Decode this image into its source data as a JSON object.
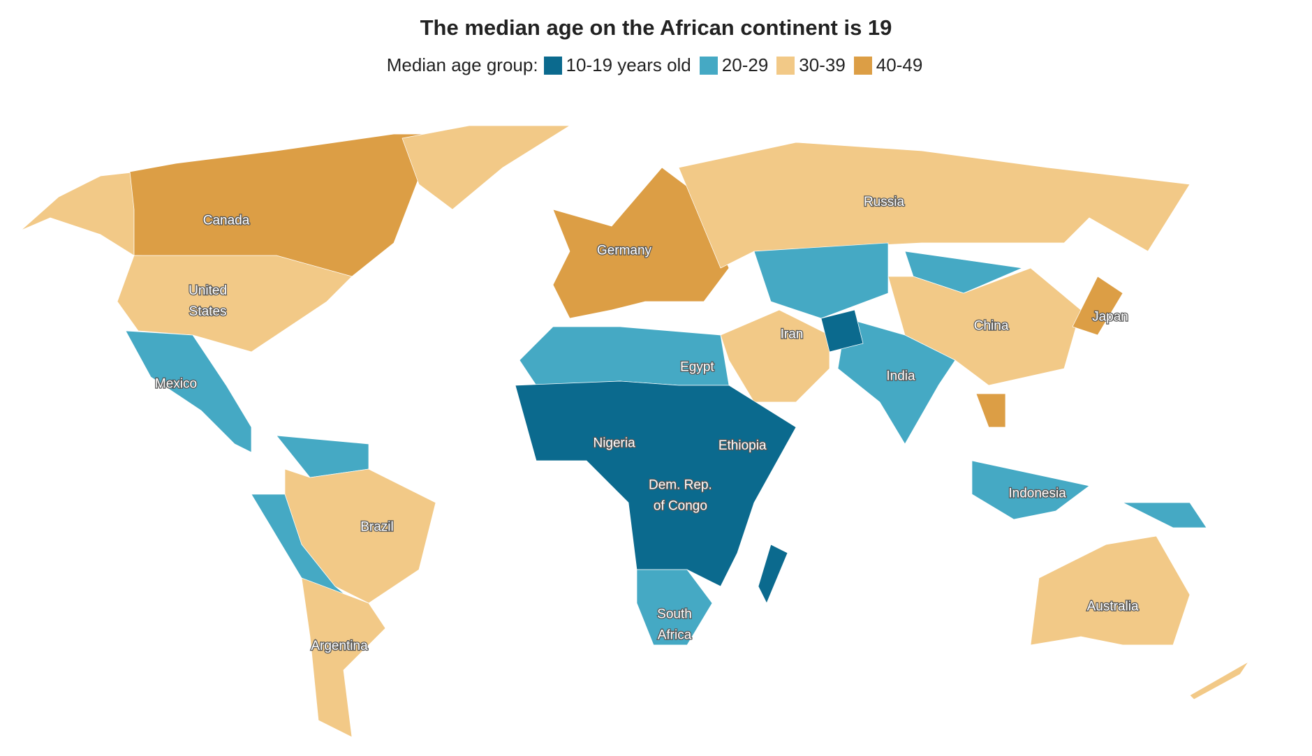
{
  "map": {
    "title": "The median age on the African continent is 19",
    "legend": {
      "label": "Median age group:",
      "items": [
        {
          "label": "10-19 years old",
          "color": "#0b6a8e"
        },
        {
          "label": "20-29",
          "color": "#45a9c4"
        },
        {
          "label": "30-39",
          "color": "#f2c987"
        },
        {
          "label": "40-49",
          "color": "#dc9e45"
        }
      ]
    },
    "labels": [
      {
        "lines": [
          "Canada"
        ]
      },
      {
        "lines": [
          "United",
          "States"
        ]
      },
      {
        "lines": [
          "Mexico"
        ]
      },
      {
        "lines": [
          "Brazil"
        ]
      },
      {
        "lines": [
          "Argentina"
        ]
      },
      {
        "lines": [
          "Germany"
        ]
      },
      {
        "lines": [
          "Russia"
        ]
      },
      {
        "lines": [
          "Iran"
        ]
      },
      {
        "lines": [
          "China"
        ]
      },
      {
        "lines": [
          "Japan"
        ]
      },
      {
        "lines": [
          "India"
        ]
      },
      {
        "lines": [
          "Egypt"
        ]
      },
      {
        "lines": [
          "Nigeria"
        ]
      },
      {
        "lines": [
          "Ethiopia"
        ]
      },
      {
        "lines": [
          "Dem. Rep.",
          "of Congo"
        ]
      },
      {
        "lines": [
          "South",
          "Africa"
        ]
      },
      {
        "lines": [
          "Indonesia"
        ]
      },
      {
        "lines": [
          "Australia"
        ]
      }
    ]
  }
}
